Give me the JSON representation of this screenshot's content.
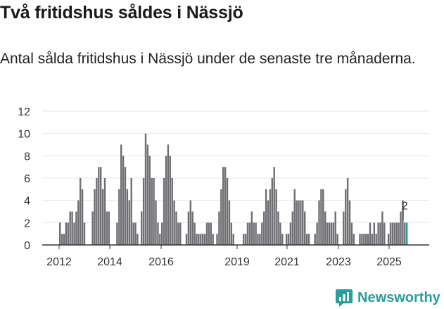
{
  "header": {
    "title": "Två fritidshus såldes i Nässjö",
    "subtitle": "Antal sålda fritidshus i Nässjö under de senaste tre månaderna."
  },
  "chart_data": {
    "type": "bar",
    "title": "Två fritidshus såldes i Nässjö",
    "subtitle": "Antal sålda fritidshus i Nässjö under de senaste tre månaderna.",
    "xlabel": "",
    "ylabel": "",
    "ylim": [
      0,
      12
    ],
    "y_ticks": [
      "0",
      "2",
      "4",
      "6",
      "8",
      "10",
      "12"
    ],
    "x_ticks": [
      "2012",
      "2014",
      "2016",
      "2019",
      "2021",
      "2023",
      "2025"
    ],
    "grid": true,
    "values": [
      2,
      1,
      1,
      2,
      2,
      3,
      3,
      2,
      3,
      4,
      6,
      5,
      2,
      0,
      0,
      0,
      3,
      5,
      6,
      7,
      7,
      5,
      6,
      3,
      3,
      0,
      0,
      0,
      2,
      5,
      9,
      8,
      7,
      5,
      4,
      6,
      2,
      2,
      1,
      0,
      3,
      6,
      10,
      9,
      8,
      6,
      6,
      4,
      2,
      1,
      2,
      6,
      8,
      9,
      8,
      6,
      4,
      3,
      2,
      2,
      0,
      0,
      1,
      3,
      4,
      3,
      2,
      1,
      1,
      1,
      1,
      1,
      2,
      2,
      2,
      1,
      0,
      1,
      3,
      5,
      7,
      7,
      6,
      4,
      2,
      1,
      0,
      0,
      0,
      0,
      1,
      1,
      2,
      2,
      3,
      2,
      2,
      1,
      1,
      2,
      3,
      5,
      4,
      5,
      6,
      7,
      5,
      3,
      2,
      1,
      0,
      1,
      1,
      2,
      3,
      5,
      4,
      4,
      4,
      4,
      3,
      1,
      1,
      0,
      0,
      1,
      2,
      4,
      5,
      5,
      3,
      2,
      2,
      2,
      2,
      3,
      1,
      0,
      0,
      3,
      5,
      6,
      4,
      2,
      1,
      0,
      0,
      1,
      1,
      1,
      1,
      1,
      2,
      1,
      2,
      1,
      2,
      2,
      3,
      2,
      0,
      1,
      2,
      2,
      2,
      2,
      2,
      3,
      4,
      2,
      2
    ],
    "highlight_index": 170,
    "highlight_label": "2",
    "colors": {
      "bar": "#6e6e73",
      "highlight": "#2a9d9c",
      "grid": "#e6e6e6",
      "axis": "#333333"
    }
  },
  "footer": {
    "brand": "Newsworthy"
  }
}
